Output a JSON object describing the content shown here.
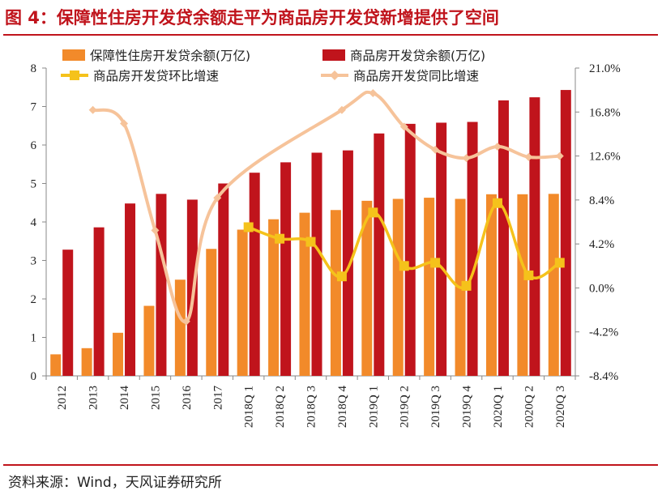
{
  "title": "图 4：保障性住房开发贷余额走平为商品房开发贷新增提供了空间",
  "source": "资料来源：Wind，天风证券研究所",
  "colors": {
    "accent": "#c0141c",
    "bar_affordable": "#f28a2a",
    "bar_commercial": "#c0141c",
    "line_qoq": "#f5c21b",
    "line_yoy": "#f6c39a"
  },
  "chart_data": {
    "type": "bar",
    "categories": [
      "2012",
      "2013",
      "2014",
      "2015",
      "2016",
      "2017",
      "2018Q 1",
      "2018Q 2",
      "2018Q 3",
      "2018Q 4",
      "2019Q 1",
      "2019Q 2",
      "2019Q 3",
      "2019Q 4",
      "2020Q 1",
      "2020Q 2",
      "2020Q 3"
    ],
    "left_axis": {
      "min": 0,
      "max": 8,
      "ticks": [
        "0",
        "1",
        "2",
        "3",
        "4",
        "5",
        "6",
        "7",
        "8"
      ]
    },
    "right_axis": {
      "min": -8.4,
      "max": 21.0,
      "ticks": [
        "-8.4%",
        "-4.2%",
        "0.0%",
        "4.2%",
        "8.4%",
        "12.6%",
        "16.8%",
        "21.0%"
      ]
    },
    "series": [
      {
        "name": "保障性住房开发贷余额(万亿)",
        "kind": "bar",
        "axis": "left",
        "values": [
          0.56,
          0.72,
          1.12,
          1.82,
          2.5,
          3.3,
          3.8,
          4.07,
          4.24,
          4.31,
          4.55,
          4.6,
          4.63,
          4.6,
          4.72,
          4.72,
          4.73
        ]
      },
      {
        "name": "商品房开发贷余额(万亿)",
        "kind": "bar",
        "axis": "left",
        "values": [
          3.28,
          3.86,
          4.48,
          4.73,
          4.58,
          5.0,
          5.28,
          5.55,
          5.8,
          5.86,
          6.3,
          6.55,
          6.58,
          6.6,
          7.16,
          7.24,
          7.43
        ]
      },
      {
        "name": "商品房开发贷环比增速",
        "kind": "line",
        "axis": "right",
        "values": [
          null,
          null,
          null,
          null,
          null,
          null,
          5.8,
          4.7,
          4.4,
          1.1,
          7.2,
          2.1,
          2.4,
          0.2,
          8.1,
          1.2,
          2.4
        ]
      },
      {
        "name": "商品房开发贷同比增速",
        "kind": "line",
        "axis": "right",
        "values": [
          null,
          17.0,
          15.7,
          5.5,
          -3.2,
          8.6,
          null,
          null,
          null,
          17.0,
          18.6,
          15.4,
          13.2,
          12.4,
          13.5,
          12.5,
          12.6
        ]
      }
    ]
  }
}
